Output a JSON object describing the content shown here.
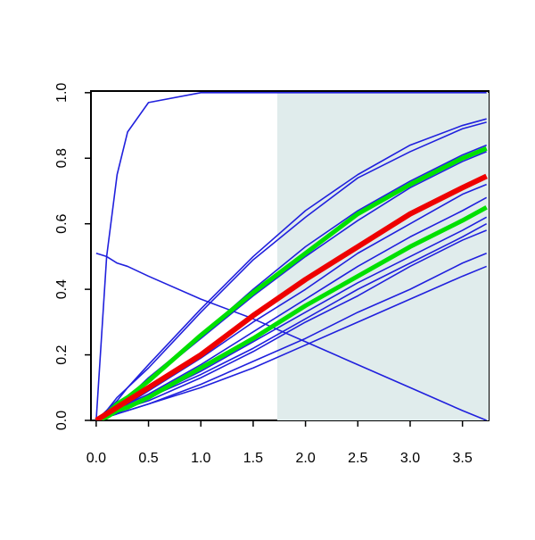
{
  "chart_data": {
    "type": "line",
    "x": [
      0,
      0.1,
      0.2,
      0.3,
      0.5,
      1,
      1.5,
      2,
      2.5,
      3,
      3.5,
      3.73
    ],
    "series": [
      {
        "color": "#2020dd",
        "values": [
          0,
          0.5,
          0.75,
          0.88,
          0.97,
          1,
          1,
          1,
          1,
          1,
          1,
          1
        ]
      },
      {
        "color": "#2020dd",
        "values": [
          0.51,
          0.5,
          0.48,
          0.47,
          0.44,
          0.37,
          0.31,
          0.24,
          0.17,
          0.1,
          0.03,
          0
        ]
      },
      {
        "color": "#2020dd",
        "values": [
          0,
          0.03,
          0.07,
          0.1,
          0.17,
          0.34,
          0.5,
          0.64,
          0.75,
          0.84,
          0.9,
          0.92
        ]
      },
      {
        "color": "#2020dd",
        "values": [
          0,
          0.03,
          0.06,
          0.1,
          0.16,
          0.33,
          0.49,
          0.62,
          0.74,
          0.82,
          0.89,
          0.91
        ]
      },
      {
        "color": "#2020dd",
        "values": [
          0,
          0.02,
          0.05,
          0.07,
          0.13,
          0.26,
          0.4,
          0.53,
          0.64,
          0.73,
          0.81,
          0.84
        ]
      },
      {
        "color": "#2020dd",
        "values": [
          0,
          0.02,
          0.05,
          0.07,
          0.12,
          0.25,
          0.38,
          0.5,
          0.61,
          0.71,
          0.79,
          0.82
        ]
      },
      {
        "color": "#2020dd",
        "values": [
          0,
          0.02,
          0.03,
          0.05,
          0.09,
          0.19,
          0.3,
          0.4,
          0.51,
          0.6,
          0.69,
          0.72
        ]
      },
      {
        "color": "#2020dd",
        "values": [
          0,
          0.02,
          0.03,
          0.05,
          0.08,
          0.17,
          0.27,
          0.37,
          0.47,
          0.56,
          0.64,
          0.68
        ]
      },
      {
        "color": "#2020dd",
        "values": [
          0,
          0.01,
          0.03,
          0.04,
          0.07,
          0.15,
          0.24,
          0.33,
          0.42,
          0.5,
          0.58,
          0.62
        ]
      },
      {
        "color": "#2020dd",
        "values": [
          0,
          0.01,
          0.02,
          0.04,
          0.07,
          0.14,
          0.22,
          0.31,
          0.4,
          0.48,
          0.56,
          0.6
        ]
      },
      {
        "color": "#2020dd",
        "values": [
          0,
          0.01,
          0.02,
          0.04,
          0.06,
          0.13,
          0.21,
          0.3,
          0.38,
          0.47,
          0.55,
          0.58
        ]
      },
      {
        "color": "#2020dd",
        "values": [
          0,
          0.01,
          0.02,
          0.03,
          0.05,
          0.11,
          0.18,
          0.25,
          0.33,
          0.4,
          0.48,
          0.51
        ]
      },
      {
        "color": "#2020dd",
        "values": [
          0,
          0.01,
          0.02,
          0.03,
          0.05,
          0.1,
          0.16,
          0.23,
          0.3,
          0.37,
          0.44,
          0.47
        ]
      },
      {
        "color": "#00e000",
        "line_width": 5,
        "values": [
          0,
          0.02,
          0.05,
          0.07,
          0.12,
          0.26,
          0.39,
          0.51,
          0.63,
          0.72,
          0.8,
          0.83
        ]
      },
      {
        "color": "#00e000",
        "line_width": 5,
        "values": [
          0,
          0.01,
          0.03,
          0.04,
          0.07,
          0.16,
          0.25,
          0.35,
          0.44,
          0.53,
          0.61,
          0.65
        ]
      },
      {
        "color": "#ee0000",
        "line_width": 6,
        "values": [
          0,
          0.02,
          0.04,
          0.06,
          0.1,
          0.2,
          0.32,
          0.43,
          0.53,
          0.63,
          0.71,
          0.745
        ]
      }
    ],
    "shaded_region": {
      "x": [
        1.73,
        3.75
      ],
      "y": [
        0,
        1
      ],
      "color": "#e0ecec"
    },
    "xlim": [
      -0.05,
      3.75
    ],
    "ylim": [
      0,
      1.005
    ],
    "xticks": [
      {
        "value": 0,
        "label": "0.0"
      },
      0.5,
      {
        "value": 1,
        "label": "1.0"
      },
      1.5,
      {
        "value": 2,
        "label": "2.0"
      },
      2.5,
      {
        "value": 3,
        "label": "3.0"
      },
      3.5
    ],
    "yticks": [
      {
        "value": 0,
        "label": "0.0"
      },
      0.2,
      0.4,
      0.6,
      0.8,
      {
        "value": 1,
        "label": "1.0"
      }
    ]
  }
}
